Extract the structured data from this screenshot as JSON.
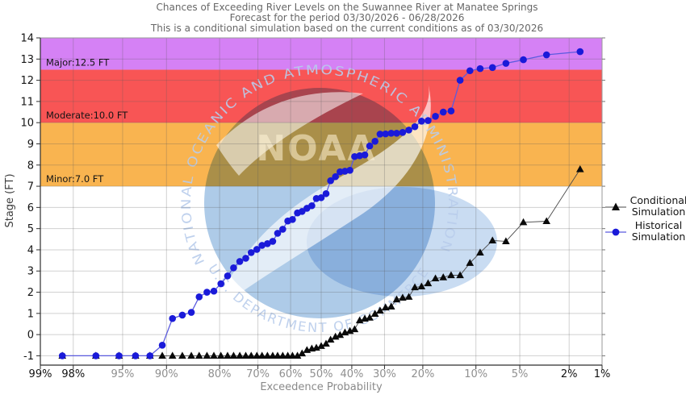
{
  "header": {
    "title_line1": "Chances of Exceeding River Levels on the Suwannee River at Manatee Springs",
    "title_line2": "Forecast for the period 03/30/2026 - 06/28/2026",
    "title_line3": "This is a conditional simulation based on the current conditions as of 03/30/2026"
  },
  "watermark": {
    "org_arc_top": "NATIONAL OCEANIC AND ATMOSPHERIC ADMINISTRATION",
    "org_arc_bottom": "U.S. DEPARTMENT OF COMMERCE",
    "logo_text": "NOAA"
  },
  "legend": {
    "items": [
      {
        "line1": "Conditional",
        "line2": "Simulation"
      },
      {
        "line1": "Historical",
        "line2": "Simulation"
      }
    ]
  },
  "chart_data": {
    "type": "line",
    "title": "Chances of Exceeding River Levels on the Suwannee River at Manatee Springs",
    "x_axis": {
      "label": "Exceedence Probability",
      "scale": "probit",
      "range_percent": [
        99,
        1
      ],
      "ticks": [
        {
          "label": "99%",
          "value": 99,
          "dark": true
        },
        {
          "label": "98%",
          "value": 98,
          "dark": true
        },
        {
          "label": "95%",
          "value": 95,
          "dark": false
        },
        {
          "label": "90%",
          "value": 90,
          "dark": false
        },
        {
          "label": "80%",
          "value": 80,
          "dark": false
        },
        {
          "label": "70%",
          "value": 70,
          "dark": false
        },
        {
          "label": "60%",
          "value": 60,
          "dark": false
        },
        {
          "label": "50%",
          "value": 50,
          "dark": false
        },
        {
          "label": "40%",
          "value": 40,
          "dark": false
        },
        {
          "label": "30%",
          "value": 30,
          "dark": false
        },
        {
          "label": "20%",
          "value": 20,
          "dark": false
        },
        {
          "label": "10%",
          "value": 10,
          "dark": false
        },
        {
          "label": "5%",
          "value": 5,
          "dark": false
        },
        {
          "label": "2%",
          "value": 2,
          "dark": true
        },
        {
          "label": "1%",
          "value": 1,
          "dark": true
        }
      ]
    },
    "y_axis": {
      "label": "Stage (FT)",
      "min": -1.44,
      "max": 14,
      "ticks": [
        -1,
        0,
        1,
        2,
        3,
        4,
        5,
        6,
        7,
        8,
        9,
        10,
        11,
        12,
        13,
        14
      ]
    },
    "flood_bands": [
      {
        "name": "Minor",
        "label": "Minor:7.0 FT",
        "from": 7.0,
        "to": 10.0,
        "color": "#f9b450"
      },
      {
        "name": "Moderate",
        "label": "Moderate:10.0 FT",
        "from": 10.0,
        "to": 12.5,
        "color": "#f85555"
      },
      {
        "name": "Major",
        "label": "Major:12.5 FT",
        "from": 12.5,
        "to": 14,
        "color": "#d581f5"
      }
    ],
    "probabilities": [
      98.4,
      96.9,
      95.3,
      93.8,
      92.2,
      90.6,
      89.1,
      87.5,
      85.9,
      84.4,
      82.8,
      81.3,
      79.7,
      78.1,
      76.6,
      75.0,
      73.4,
      71.9,
      70.3,
      68.8,
      67.2,
      65.6,
      64.1,
      62.5,
      60.9,
      59.4,
      57.8,
      56.3,
      54.7,
      53.1,
      51.6,
      50.0,
      48.4,
      46.9,
      45.3,
      43.8,
      42.2,
      40.6,
      39.1,
      37.5,
      35.9,
      34.4,
      32.8,
      31.3,
      29.7,
      28.1,
      26.6,
      25.0,
      23.4,
      21.9,
      20.3,
      18.8,
      17.2,
      15.6,
      14.1,
      12.5,
      10.9,
      9.4,
      7.8,
      6.3,
      4.7,
      3.1,
      1.6
    ],
    "series": [
      {
        "name": "Conditional Simulation",
        "marker": "triangle",
        "marker_color": "#0a0a0a",
        "line_color": "#4a4a4a",
        "values": [
          -1,
          -1,
          -1,
          -1,
          -1,
          -1,
          -1,
          -1,
          -1,
          -1,
          -1,
          -1,
          -1,
          -1,
          -1,
          -1,
          -1,
          -1,
          -1,
          -1,
          -1,
          -1,
          -1,
          -1,
          -1,
          -1,
          -1,
          -0.89,
          -0.73,
          -0.66,
          -0.62,
          -0.54,
          -0.43,
          -0.24,
          -0.1,
          -0.02,
          0.1,
          0.17,
          0.25,
          0.67,
          0.75,
          0.8,
          0.98,
          1.13,
          1.28,
          1.32,
          1.66,
          1.74,
          1.78,
          2.23,
          2.27,
          2.42,
          2.65,
          2.7,
          2.8,
          2.8,
          3.38,
          3.87,
          4.44,
          4.4,
          5.3,
          5.35,
          7.8
        ]
      },
      {
        "name": "Historical Simulation",
        "marker": "circle",
        "marker_color": "#1a1ad9",
        "line_color": "#5b5bdf",
        "values": [
          -1,
          -1,
          -1,
          -1,
          -1,
          -0.5,
          0.76,
          0.92,
          1.05,
          1.78,
          2.0,
          2.05,
          2.4,
          2.77,
          3.15,
          3.45,
          3.6,
          3.87,
          4.02,
          4.21,
          4.29,
          4.4,
          4.78,
          4.97,
          5.36,
          5.43,
          5.74,
          5.81,
          5.96,
          6.08,
          6.42,
          6.46,
          6.65,
          7.26,
          7.45,
          7.68,
          7.71,
          7.75,
          8.4,
          8.44,
          8.48,
          8.9,
          9.12,
          9.46,
          9.47,
          9.5,
          9.5,
          9.54,
          9.65,
          9.81,
          10.07,
          10.1,
          10.3,
          10.5,
          10.55,
          12.0,
          12.45,
          12.55,
          12.6,
          12.8,
          12.97,
          13.2,
          13.35
        ]
      }
    ]
  }
}
